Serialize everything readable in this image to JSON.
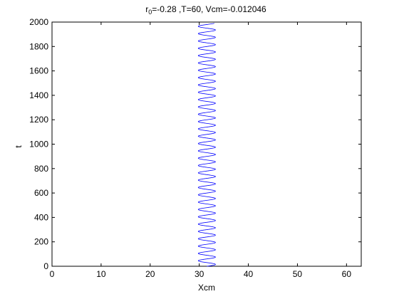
{
  "chart_data": {
    "type": "line",
    "title": {
      "prefix": "r",
      "subscript": "0",
      "rest": "=-0.28 ,T=60, Vcm=-0.012046"
    },
    "xlabel": "Xcm",
    "ylabel": "t",
    "xlim": [
      0,
      63
    ],
    "ylim": [
      0,
      2000
    ],
    "xticks": [
      0,
      10,
      20,
      30,
      40,
      50,
      60
    ],
    "xtick_labels": [
      "0",
      "10",
      "20",
      "30",
      "40",
      "50",
      "60"
    ],
    "yticks": [
      0,
      200,
      400,
      600,
      800,
      1000,
      1200,
      1400,
      1600,
      1800,
      2000
    ],
    "ytick_labels": [
      "0",
      "200",
      "400",
      "600",
      "800",
      "1000",
      "1200",
      "1400",
      "1600",
      "1800",
      "2000"
    ],
    "grid": false,
    "series": [
      {
        "color": "#0000ff",
        "form": "oscillation",
        "x_min": 29.8,
        "x_max": 33.3,
        "t_start": 0,
        "t_end": 1990,
        "period": 60,
        "samples": 1800
      }
    ]
  }
}
